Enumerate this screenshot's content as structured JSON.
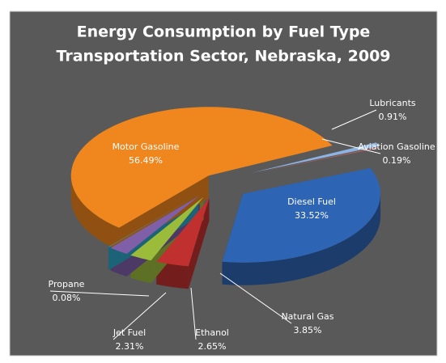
{
  "chart_data": {
    "type": "pie",
    "title": "Energy Consumption by Fuel Type",
    "subtitle": "Transportation Sector, Nebraska, 2009",
    "categories": [
      "Lubricants",
      "Aviation Gasoline",
      "Diesel Fuel",
      "Natural Gas",
      "Ethanol",
      "Jet Fuel",
      "Propane",
      "Motor Gasoline"
    ],
    "values": [
      0.91,
      0.19,
      33.52,
      3.85,
      2.65,
      2.31,
      0.08,
      56.49
    ],
    "value_labels": [
      "0.91%",
      "0.19%",
      "33.52%",
      "3.85%",
      "2.65%",
      "2.31%",
      "0.08%",
      "56.49%"
    ],
    "colors": [
      "#8db3e2",
      "#c0645f",
      "#2e64b4",
      "#c0302e",
      "#9bbb3b",
      "#7f5fa8",
      "#31a5c6",
      "#f0861e"
    ]
  }
}
